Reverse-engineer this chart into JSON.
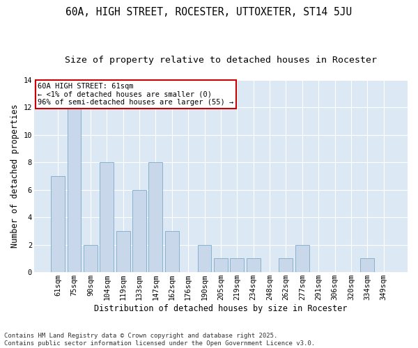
{
  "title": "60A, HIGH STREET, ROCESTER, UTTOXETER, ST14 5JU",
  "subtitle": "Size of property relative to detached houses in Rocester",
  "xlabel": "Distribution of detached houses by size in Rocester",
  "ylabel": "Number of detached properties",
  "footer_line1": "Contains HM Land Registry data © Crown copyright and database right 2025.",
  "footer_line2": "Contains public sector information licensed under the Open Government Licence v3.0.",
  "categories": [
    "61sqm",
    "75sqm",
    "90sqm",
    "104sqm",
    "119sqm",
    "133sqm",
    "147sqm",
    "162sqm",
    "176sqm",
    "190sqm",
    "205sqm",
    "219sqm",
    "234sqm",
    "248sqm",
    "262sqm",
    "277sqm",
    "291sqm",
    "306sqm",
    "320sqm",
    "334sqm",
    "349sqm"
  ],
  "values": [
    7,
    12,
    2,
    8,
    3,
    6,
    8,
    3,
    0,
    2,
    1,
    1,
    1,
    0,
    1,
    2,
    0,
    0,
    0,
    1,
    0
  ],
  "bar_color": "#c8d8ea",
  "bar_edge_color": "#7aaac8",
  "background_color": "#dce8f4",
  "fig_background_color": "#ffffff",
  "annotation_line1": "60A HIGH STREET: 61sqm",
  "annotation_line2": "← <1% of detached houses are smaller (0)",
  "annotation_line3": "96% of semi-detached houses are larger (55) →",
  "annotation_box_color": "#ffffff",
  "annotation_box_edge": "#cc0000",
  "ylim": [
    0,
    14
  ],
  "yticks": [
    0,
    2,
    4,
    6,
    8,
    10,
    12,
    14
  ],
  "title_fontsize": 10.5,
  "subtitle_fontsize": 9.5,
  "axis_label_fontsize": 8.5,
  "tick_fontsize": 7.5,
  "annotation_fontsize": 7.5,
  "footer_fontsize": 6.5
}
